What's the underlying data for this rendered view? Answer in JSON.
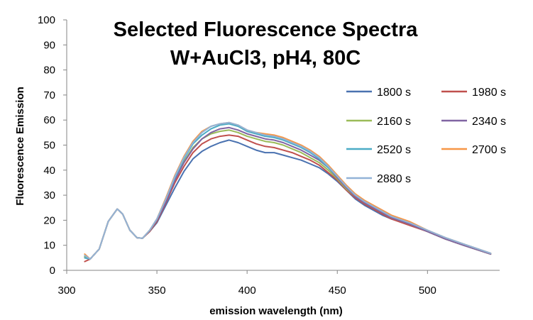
{
  "chart_data": {
    "type": "line",
    "title": [
      "Selected Fluorescence Spectra",
      "W+AuCl3, pH4, 80C"
    ],
    "xlabel": "emission wavelength (nm)",
    "ylabel": "Fluorescence Emission",
    "xlim": [
      300,
      540
    ],
    "ylim": [
      0,
      100
    ],
    "x_ticks": [
      300,
      350,
      400,
      450,
      500
    ],
    "y_ticks": [
      0,
      10,
      20,
      30,
      40,
      50,
      60,
      70,
      80,
      90,
      100
    ],
    "grid": false,
    "legend_position": "right",
    "x": [
      310,
      313,
      318,
      323,
      328,
      331,
      335,
      339,
      342,
      346,
      350,
      355,
      360,
      365,
      370,
      375,
      380,
      385,
      390,
      395,
      400,
      405,
      410,
      415,
      420,
      425,
      430,
      435,
      440,
      445,
      450,
      455,
      460,
      465,
      470,
      475,
      480,
      490,
      500,
      510,
      520,
      535
    ],
    "series": [
      {
        "name": "1800 s",
        "color": "#4a72b0",
        "values": [
          5.5,
          4.5,
          8.5,
          19.5,
          24.5,
          22.5,
          16,
          13,
          12.8,
          15.5,
          19,
          26,
          33,
          39.5,
          44.5,
          47.5,
          49.5,
          51,
          52,
          51,
          49.5,
          48,
          47,
          47,
          46,
          45,
          44,
          42.5,
          41,
          38.5,
          35.5,
          32,
          28.5,
          26,
          24,
          22,
          20.5,
          18.5,
          15.5,
          12.5,
          10,
          6.5
        ]
      },
      {
        "name": "1980 s",
        "color": "#c0504d",
        "values": [
          3.5,
          4.5,
          8.5,
          19.5,
          24.5,
          22.5,
          16,
          13,
          12.8,
          15.5,
          19.5,
          27,
          35,
          41.5,
          47,
          50.5,
          52.5,
          53.5,
          54,
          53.5,
          52,
          50.5,
          49.5,
          49,
          48,
          47,
          45.5,
          44,
          42,
          39,
          36,
          32,
          29,
          26.5,
          24.5,
          22.5,
          20.5,
          18,
          15.5,
          12.5,
          10,
          6.5
        ]
      },
      {
        "name": "2160 s",
        "color": "#9bbb59",
        "values": [
          5.5,
          4.5,
          8.5,
          19.5,
          24.5,
          22.5,
          16,
          13,
          12.8,
          15.8,
          20,
          28,
          36.5,
          43.5,
          49,
          52.5,
          54.5,
          55.5,
          56,
          55,
          53.5,
          52.5,
          51.5,
          51,
          50,
          48.5,
          47,
          45,
          43,
          40,
          36.5,
          32.5,
          29.5,
          27,
          25,
          23,
          21,
          18.5,
          15.5,
          12.5,
          10,
          6.5
        ]
      },
      {
        "name": "2340 s",
        "color": "#8064a2",
        "values": [
          5,
          4.5,
          8.5,
          19.5,
          24.5,
          22.5,
          16,
          13,
          12.8,
          15.8,
          20,
          27.5,
          36,
          43,
          48.5,
          52.5,
          55,
          56.5,
          57,
          56,
          54.5,
          53.5,
          52.5,
          52,
          51,
          49.5,
          48,
          46,
          44,
          41,
          37,
          33,
          29.5,
          27,
          25,
          23,
          21,
          18.5,
          15.5,
          12.5,
          10,
          6.5
        ]
      },
      {
        "name": "2520 s",
        "color": "#4bacc6",
        "values": [
          5,
          4.5,
          8.5,
          19.5,
          24.5,
          22.5,
          16,
          13,
          12.8,
          16,
          20.5,
          28.5,
          37,
          44.5,
          50.5,
          54,
          56.5,
          58,
          58.5,
          57.5,
          55.5,
          54.5,
          53.5,
          53,
          52,
          50.5,
          49,
          47,
          44.5,
          41,
          37.5,
          33.5,
          30,
          27.5,
          25.5,
          23.5,
          21.5,
          19,
          16,
          13,
          10.5,
          6.8
        ]
      },
      {
        "name": "2700 s",
        "color": "#f79646",
        "values": [
          6.5,
          4.5,
          8.5,
          19.5,
          24.5,
          22.5,
          16,
          13,
          12.8,
          16,
          20.5,
          29,
          38,
          45.5,
          51.5,
          55.5,
          57.5,
          58.5,
          59,
          58,
          56,
          55,
          54.5,
          54,
          53,
          51.5,
          50,
          48,
          45.5,
          42,
          38,
          34,
          30.5,
          28,
          26,
          24,
          22,
          19.5,
          16,
          13,
          10.5,
          6.8
        ]
      },
      {
        "name": "2880 s",
        "color": "#93b3d7",
        "values": [
          6,
          4.5,
          8.5,
          19.5,
          24.5,
          22.5,
          16,
          13,
          12.8,
          16,
          20.5,
          28.5,
          37.5,
          45,
          51,
          55,
          57.5,
          58.5,
          59,
          58,
          56,
          55,
          54,
          53.5,
          52.5,
          51,
          49.5,
          47.5,
          45,
          41.5,
          37.5,
          33.5,
          30,
          27.5,
          25.5,
          23.5,
          21.5,
          19,
          16,
          13,
          10.5,
          6.8
        ]
      }
    ]
  }
}
